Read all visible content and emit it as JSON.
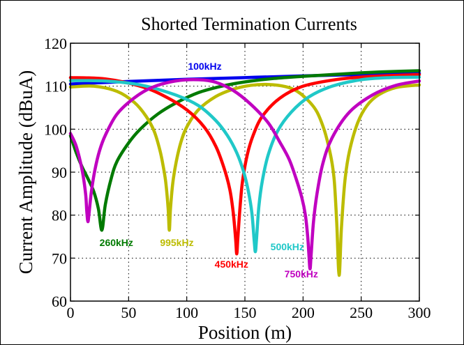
{
  "chart_data": {
    "type": "line",
    "title": "Shorted Termination Currents",
    "xlabel": "Position (m)",
    "ylabel": "Current Amplitude (dBuA)",
    "xlim": [
      0,
      300
    ],
    "ylim": [
      60,
      120
    ],
    "xticks": [
      0,
      50,
      100,
      150,
      200,
      250,
      300
    ],
    "yticks": [
      60,
      70,
      80,
      90,
      100,
      110,
      120
    ],
    "x_tick_labels": [
      "0",
      "50",
      "100",
      "150",
      "200",
      "250",
      "300"
    ],
    "y_tick_labels": [
      "60",
      "70",
      "80",
      "90",
      "100",
      "110",
      "120"
    ],
    "grid": true,
    "series": [
      {
        "name": "100kHz",
        "color": "#0000ee",
        "x": [
          0,
          50,
          100,
          150,
          200,
          250,
          300
        ],
        "y": [
          110.5,
          111.1,
          111.6,
          112.0,
          112.4,
          112.7,
          113.0
        ]
      },
      {
        "name": "260kHz",
        "color": "#007a00",
        "x": [
          0,
          5,
          10,
          15,
          20,
          24,
          27,
          30,
          35,
          40,
          50,
          60,
          75,
          90,
          110,
          130,
          150,
          175,
          200,
          225,
          250,
          275,
          300
        ],
        "y": [
          98.5,
          94.5,
          91.2,
          88.5,
          85.5,
          81.5,
          76.5,
          82.5,
          88.5,
          92.5,
          96.8,
          100.0,
          103.5,
          106.0,
          108.5,
          110.0,
          111.0,
          111.8,
          112.3,
          112.7,
          113.1,
          113.4,
          113.6
        ]
      },
      {
        "name": "995kHz",
        "color": "#bcbc00",
        "x": [
          0,
          20,
          40,
          55,
          65,
          72,
          77,
          80,
          82,
          84,
          85,
          86,
          88,
          91,
          95,
          100,
          110,
          125,
          140,
          155,
          170,
          185,
          195,
          205,
          212,
          218,
          222,
          225,
          227,
          229,
          231,
          233,
          236,
          240,
          247,
          255,
          265,
          280,
          300
        ],
        "y": [
          109.8,
          110.0,
          108.8,
          106.2,
          103.0,
          99.5,
          95.0,
          91.0,
          87.5,
          81.5,
          76.5,
          81.5,
          87.5,
          92.5,
          97.0,
          100.5,
          104.5,
          107.6,
          109.3,
          110.2,
          110.4,
          109.9,
          108.8,
          106.5,
          104.0,
          100.0,
          96.0,
          92.0,
          87.5,
          78.0,
          66.0,
          77.0,
          88.0,
          95.0,
          101.5,
          105.5,
          108.0,
          109.7,
          110.3
        ]
      },
      {
        "name": "450kHz",
        "color": "#ff0000",
        "x": [
          0,
          30,
          60,
          80,
          100,
          115,
          125,
          132,
          137,
          140,
          142,
          143,
          144,
          146,
          148,
          152,
          157,
          165,
          180,
          200,
          230,
          260,
          300
        ],
        "y": [
          112.0,
          111.7,
          110.0,
          107.8,
          104.5,
          100.5,
          96.0,
          91.0,
          86.0,
          80.5,
          74.5,
          71.0,
          75.0,
          82.5,
          88.0,
          94.0,
          98.5,
          103.0,
          107.2,
          110.0,
          111.6,
          112.3,
          112.7
        ]
      },
      {
        "name": "500kHz",
        "color": "#20c8c8",
        "x": [
          0,
          30,
          60,
          90,
          110,
          125,
          135,
          143,
          149,
          153,
          156,
          158,
          159,
          160,
          162,
          165,
          170,
          178,
          190,
          205,
          225,
          250,
          275,
          300
        ],
        "y": [
          111.3,
          111.2,
          110.3,
          108.0,
          105.5,
          102.0,
          98.5,
          94.5,
          90.0,
          85.5,
          80.5,
          74.0,
          71.5,
          74.5,
          82.0,
          88.0,
          94.0,
          99.5,
          104.0,
          107.5,
          110.0,
          111.5,
          112.0,
          112.1
        ]
      },
      {
        "name": "750kHz",
        "color": "#c000c0",
        "x": [
          0,
          5,
          10,
          13,
          14,
          15,
          16,
          18,
          21,
          25,
          30,
          40,
          55,
          70,
          90,
          110,
          125,
          140,
          155,
          170,
          180,
          188,
          194,
          199,
          202,
          204,
          205,
          206,
          207,
          209,
          212,
          217,
          225,
          240,
          260,
          280,
          300
        ],
        "y": [
          99.0,
          96.0,
          90.5,
          85.0,
          81.0,
          78.5,
          80.5,
          85.5,
          90.5,
          95.0,
          98.6,
          103.5,
          107.3,
          109.7,
          111.2,
          111.5,
          110.9,
          109.0,
          105.8,
          101.5,
          97.0,
          93.0,
          88.5,
          84.0,
          80.0,
          75.0,
          71.0,
          67.5,
          71.0,
          78.5,
          85.0,
          92.0,
          98.0,
          104.0,
          108.0,
          110.2,
          111.2
        ]
      }
    ],
    "annotations": [
      {
        "text": "100kHz",
        "color": "#0000ee",
        "x": 101,
        "y": 113.8
      },
      {
        "text": "260kHz",
        "color": "#007a00",
        "x": 25,
        "y": 72.8
      },
      {
        "text": "995kHz",
        "color": "#bcbc00",
        "x": 77,
        "y": 72.8
      },
      {
        "text": "450kHz",
        "color": "#ff0000",
        "x": 124,
        "y": 67.8
      },
      {
        "text": "500kHz",
        "color": "#20c8c8",
        "x": 172,
        "y": 71.8
      },
      {
        "text": "750kHz",
        "color": "#c000c0",
        "x": 184,
        "y": 65.5
      }
    ]
  }
}
